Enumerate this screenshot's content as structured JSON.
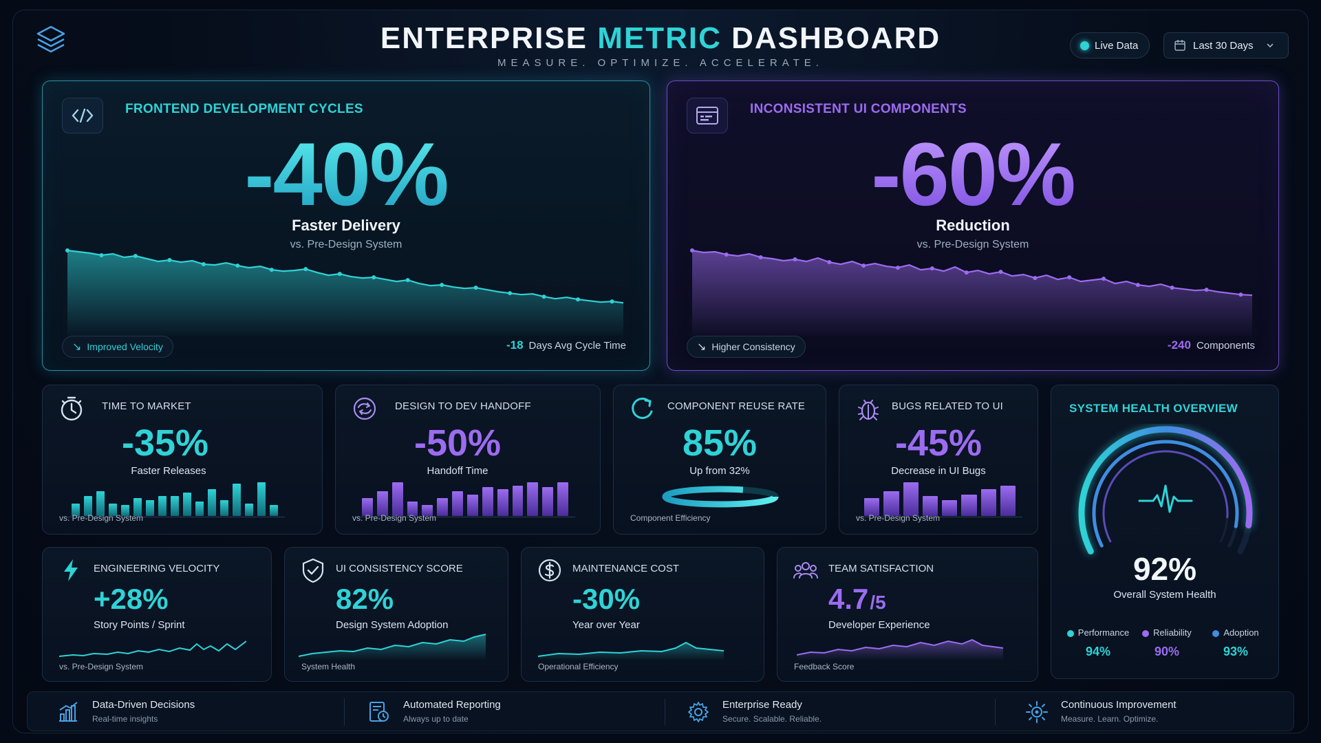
{
  "header": {
    "title_part1": "ENTERPRISE ",
    "title_part2": "METRIC",
    "title_part3": " DASHBOARD",
    "tagline": "MEASURE. OPTIMIZE. ACCELERATE.",
    "live_label": "Live Data",
    "date_range": "Last 30 Days"
  },
  "hero_left": {
    "title": "FRONTEND DEVELOPMENT CYCLES",
    "value": "-40%",
    "subtitle": "Faster Delivery",
    "caption": "vs. Pre-Design System",
    "pill": "Improved Velocity",
    "foot_num": "-18",
    "foot_label": "Days Avg Cycle Time",
    "trend": [
      100,
      98,
      96,
      93,
      95,
      90,
      92,
      88,
      84,
      86,
      83,
      85,
      80,
      79,
      82,
      78,
      75,
      77,
      72,
      70,
      71,
      73,
      68,
      64,
      66,
      62,
      60,
      61,
      58,
      55,
      57,
      52,
      49,
      50,
      47,
      45,
      46,
      43,
      40,
      38,
      36,
      37,
      33,
      30,
      32,
      29,
      27,
      25,
      26,
      24
    ],
    "color": "#2fd3d6"
  },
  "hero_right": {
    "title": "INCONSISTENT UI COMPONENTS",
    "value": "-60%",
    "subtitle": "Reduction",
    "caption": "vs. Pre-Design System",
    "pill": "Higher Consistency",
    "foot_num": "-240",
    "foot_label": "Components",
    "trend": [
      100,
      97,
      98,
      94,
      92,
      95,
      90,
      88,
      85,
      87,
      84,
      89,
      83,
      80,
      84,
      78,
      81,
      77,
      75,
      79,
      72,
      74,
      70,
      76,
      68,
      71,
      66,
      69,
      63,
      65,
      60,
      64,
      58,
      61,
      55,
      57,
      59,
      52,
      55,
      50,
      48,
      51,
      46,
      44,
      42,
      43,
      40,
      38,
      36,
      35
    ],
    "color": "#9c6cf0"
  },
  "row1": [
    {
      "title": "TIME TO MARKET",
      "value": "-35%",
      "subtitle": "Faster Releases",
      "foot": "vs. Pre-Design System",
      "icon": "stopwatch-icon",
      "accent": "cyan",
      "bars": [
        0.35,
        0.55,
        0.7,
        0.35,
        0.3,
        0.5,
        0.45,
        0.55,
        0.55,
        0.65,
        0.4,
        0.75,
        0.45,
        0.9,
        0.35,
        0.95,
        0.3
      ]
    },
    {
      "title": "DESIGN TO DEV HANDOFF",
      "value": "-50%",
      "subtitle": "Handoff Time",
      "foot": "vs. Pre-Design System",
      "icon": "handoff-icon",
      "accent": "purple",
      "bars": [
        0.5,
        0.7,
        0.95,
        0.4,
        0.3,
        0.5,
        0.7,
        0.6,
        0.8,
        0.75,
        0.85,
        0.95,
        0.8,
        0.95
      ]
    },
    {
      "title": "COMPONENT REUSE RATE",
      "value": "85%",
      "subtitle": "Up from 32%",
      "foot": "Component Efficiency",
      "icon": "reuse-icon",
      "accent": "cyan",
      "progress": 0.85
    },
    {
      "title": "BUGS RELATED TO UI",
      "value": "-45%",
      "subtitle": "Decrease in UI Bugs",
      "foot": "vs. Pre-Design System",
      "icon": "bug-icon",
      "accent": "purple",
      "bars": [
        0.5,
        0.7,
        0.95,
        0.55,
        0.45,
        0.6,
        0.75,
        0.85
      ]
    }
  ],
  "row2": [
    {
      "title": "ENGINEERING VELOCITY",
      "value": "+28%",
      "subtitle": "Story Points / Sprint",
      "foot": "vs. Pre-Design System",
      "icon": "bolt-icon",
      "accent": "cyan"
    },
    {
      "title": "UI CONSISTENCY SCORE",
      "value": "82%",
      "subtitle": "Design System Adoption",
      "foot": "System Health",
      "icon": "shield-check-icon",
      "accent": "cyan"
    },
    {
      "title": "MAINTENANCE COST",
      "value": "-30%",
      "subtitle": "Year over Year",
      "foot": "Operational Efficiency",
      "icon": "dollar-icon",
      "accent": "cyan"
    },
    {
      "title": "TEAM SATISFACTION",
      "value": "4.7",
      "value_suffix": "/5",
      "subtitle": "Developer Experience",
      "foot": "Feedback Score",
      "icon": "team-icon",
      "accent": "purple"
    }
  ],
  "health": {
    "title": "SYSTEM HEALTH OVERVIEW",
    "value": "92%",
    "label": "Overall System Health",
    "level": 0.92,
    "legend": [
      {
        "name": "Performance",
        "value": "94%",
        "color": "#2fd3d6"
      },
      {
        "name": "Reliability",
        "value": "90%",
        "color": "#9c6cf0"
      },
      {
        "name": "Adoption",
        "value": "93%",
        "color": "#3f8de0"
      }
    ]
  },
  "footer": [
    {
      "title": "Data-Driven Decisions",
      "sub": "Real-time insights",
      "icon": "bar-chart-icon"
    },
    {
      "title": "Automated Reporting",
      "sub": "Always up to date",
      "icon": "report-icon"
    },
    {
      "title": "Enterprise Ready",
      "sub": "Secure. Scalable. Reliable.",
      "icon": "gear-icon"
    },
    {
      "title": "Continuous Improvement",
      "sub": "Measure. Learn. Optimize.",
      "icon": "sun-gear-icon"
    }
  ]
}
